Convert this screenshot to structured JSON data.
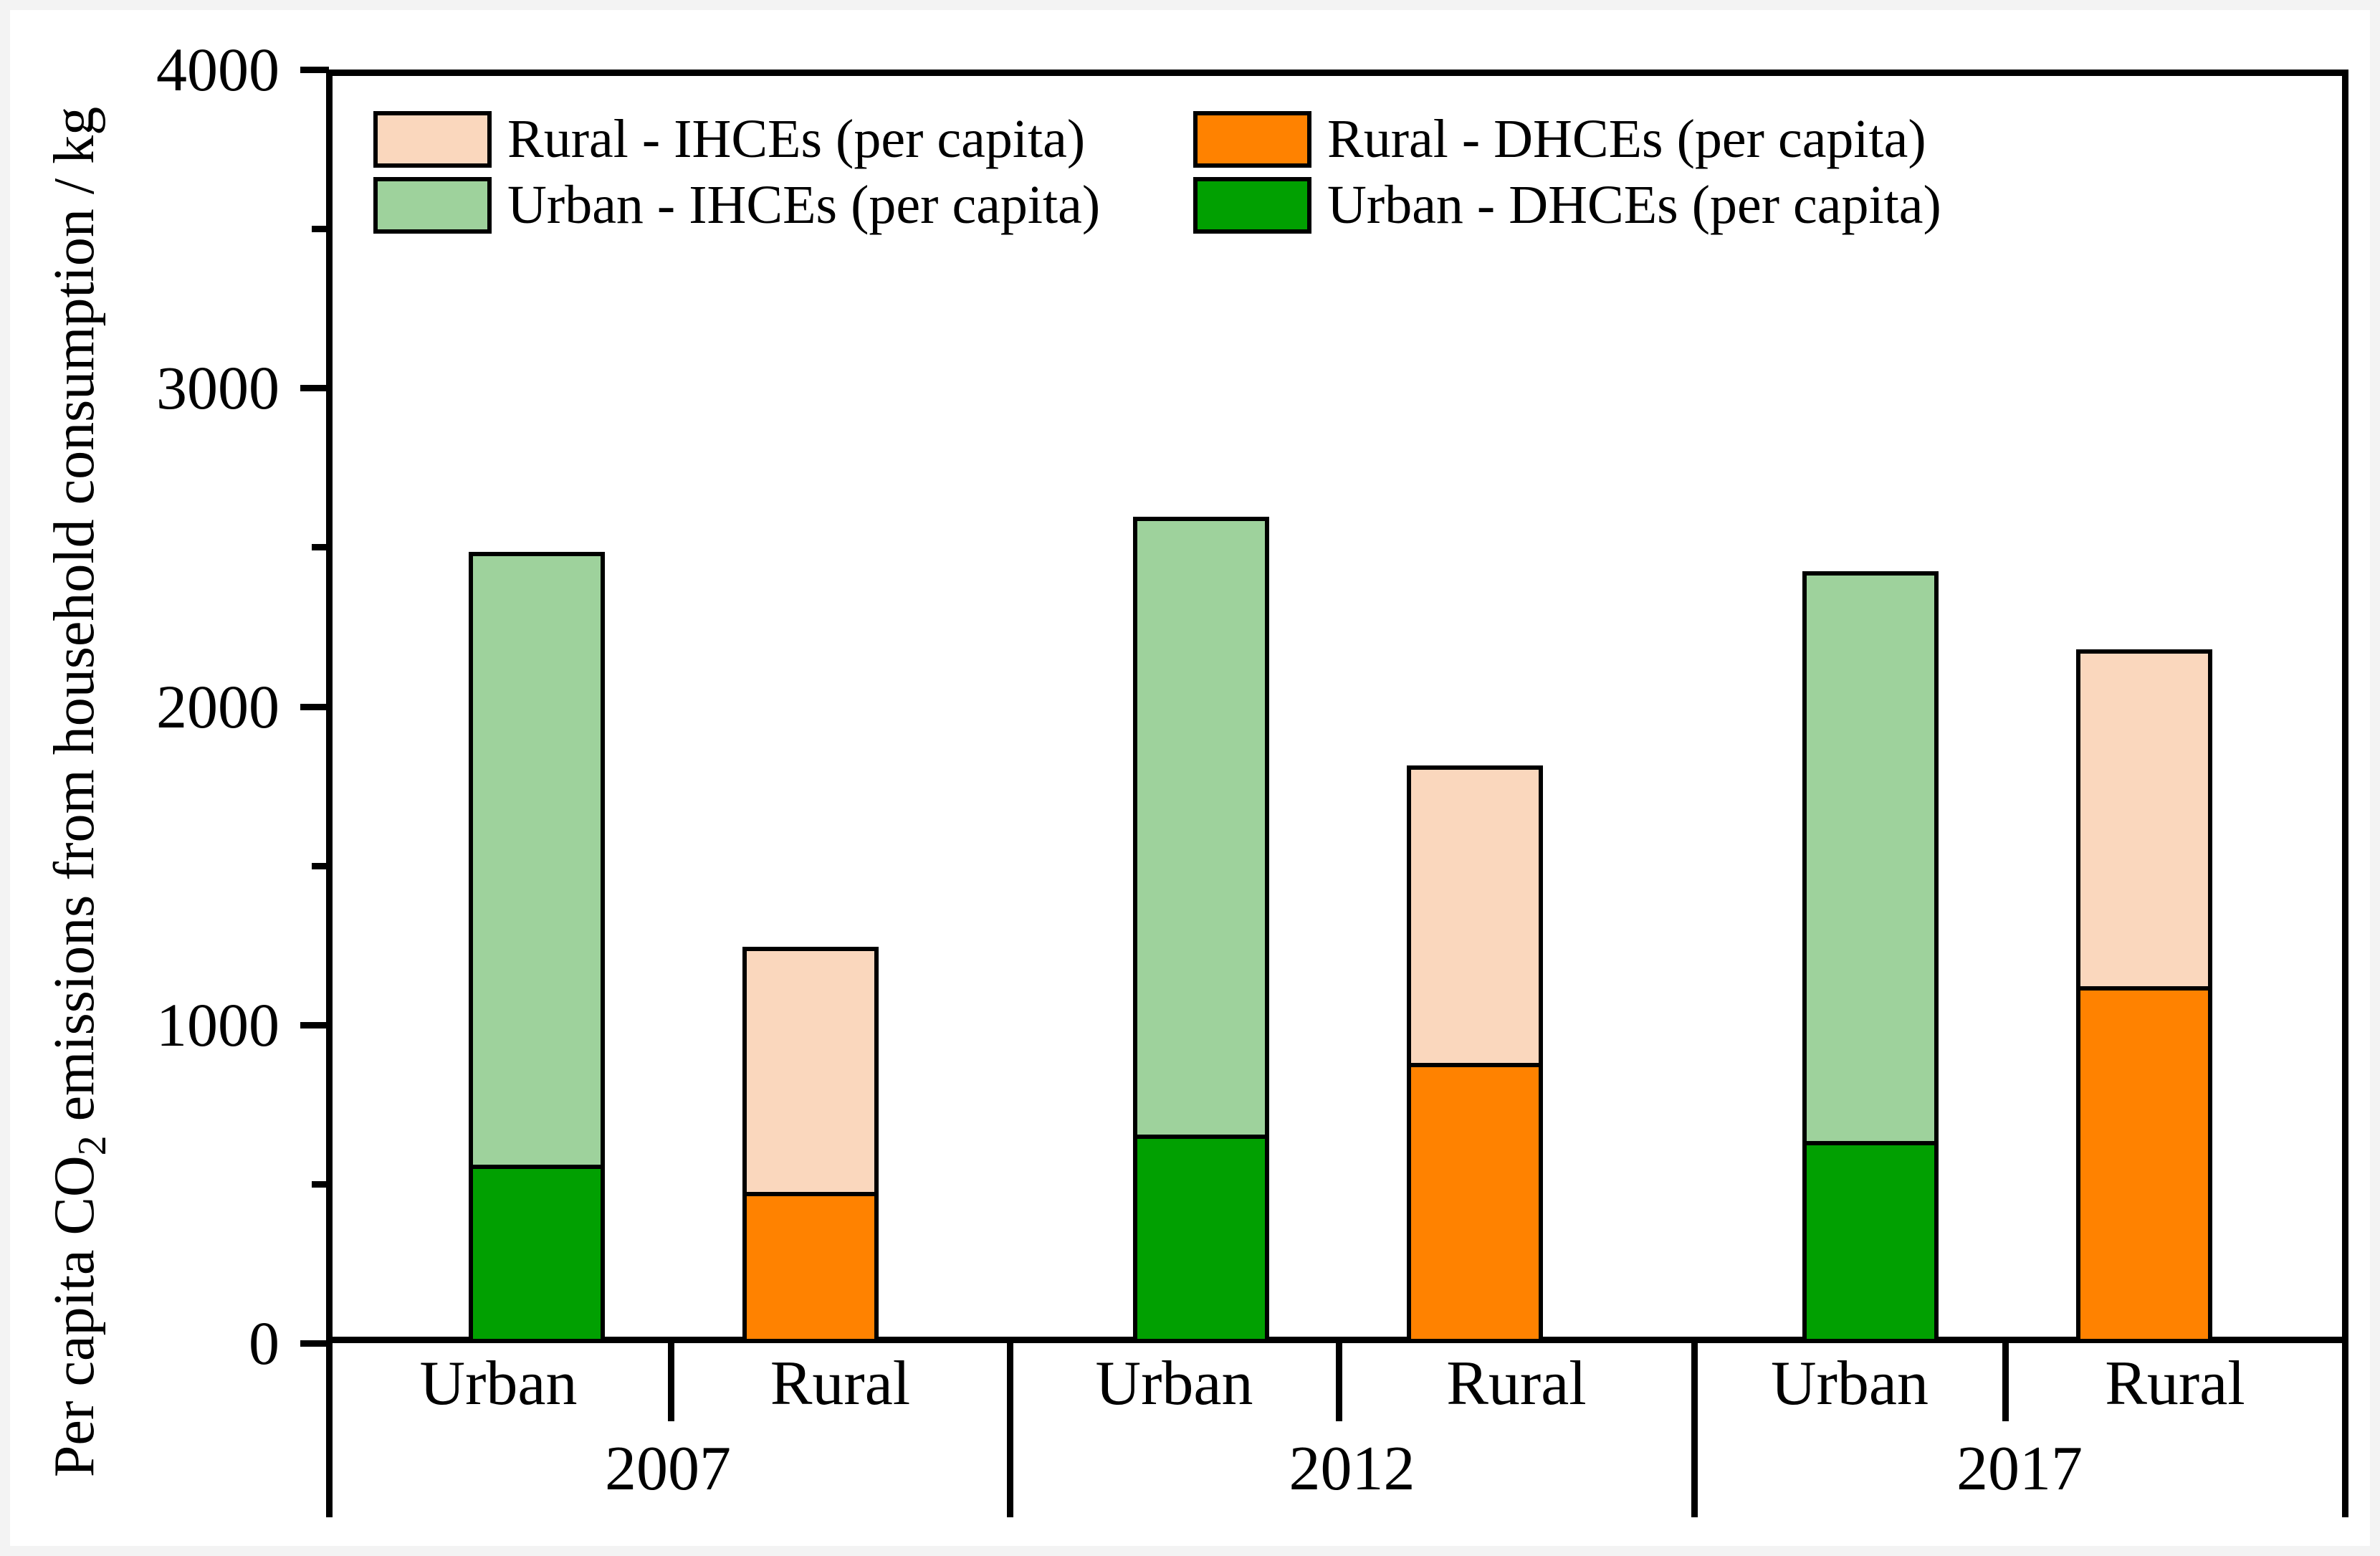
{
  "chart_data": {
    "type": "bar",
    "stacked": true,
    "ylabel": "Per capita CO2 emissions from household consumption / kg",
    "ylabel_parts": {
      "pre": "Per capita CO",
      "sub": "2",
      "post": " emissions from household consumption / kg"
    },
    "ylim": [
      0,
      4000
    ],
    "y_ticks": [
      0,
      1000,
      2000,
      3000,
      4000
    ],
    "y_minor_ticks": [
      500,
      1500,
      2500,
      3500
    ],
    "grid": false,
    "legend_position": "top-left, two columns inside plot",
    "series_colors": {
      "rural_ihce": "#FAD7BD",
      "urban_ihce": "#9ED29C",
      "rural_dhce": "#FF8200",
      "urban_dhce": "#01A001"
    },
    "legend": [
      {
        "label": "Rural - IHCEs (per capita)",
        "color": "#FAD7BD"
      },
      {
        "label": "Urban - IHCEs (per capita)",
        "color": "#9ED29C"
      },
      {
        "label": "Rural - DHCEs (per capita)",
        "color": "#FF8200"
      },
      {
        "label": "Urban - DHCEs (per capita)",
        "color": "#01A001"
      }
    ],
    "groups": [
      {
        "year": "2007",
        "bars": [
          {
            "location": "Urban",
            "DHCE": 560,
            "IHCE": 1925,
            "total": 2485
          },
          {
            "location": "Rural",
            "DHCE": 475,
            "IHCE": 770,
            "total": 1245
          }
        ]
      },
      {
        "year": "2012",
        "bars": [
          {
            "location": "Urban",
            "DHCE": 655,
            "IHCE": 1940,
            "total": 2595
          },
          {
            "location": "Rural",
            "DHCE": 880,
            "IHCE": 935,
            "total": 1815
          }
        ]
      },
      {
        "year": "2017",
        "bars": [
          {
            "location": "Urban",
            "DHCE": 635,
            "IHCE": 1790,
            "total": 2425
          },
          {
            "location": "Rural",
            "DHCE": 1120,
            "IHCE": 1060,
            "total": 2180
          }
        ]
      }
    ]
  }
}
